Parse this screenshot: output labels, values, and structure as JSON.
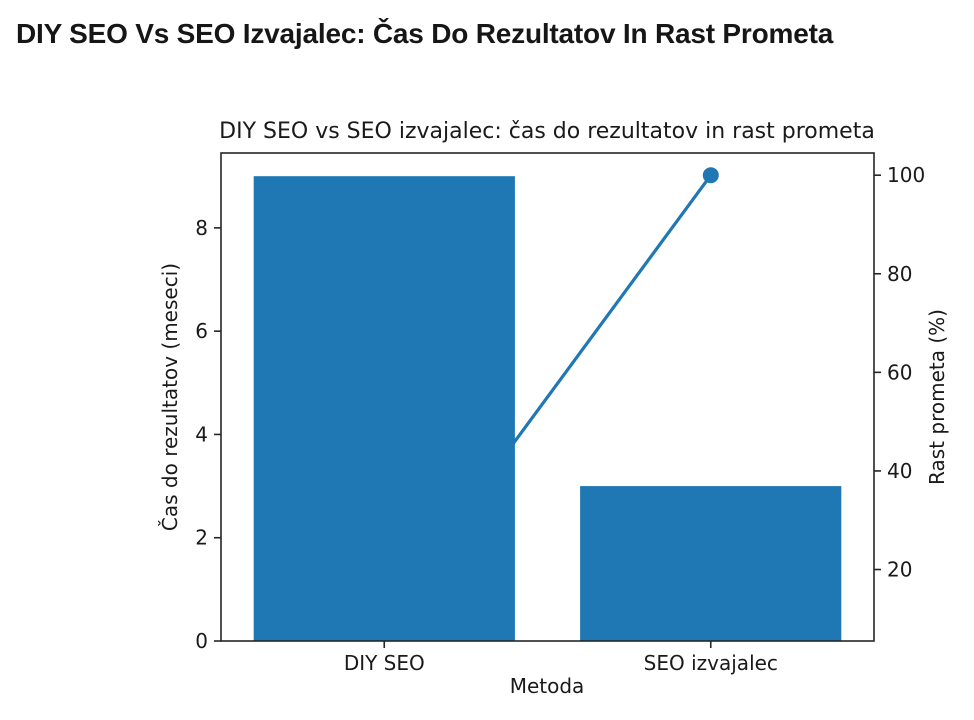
{
  "page": {
    "heading": "DIY SEO Vs SEO Izvajalec: Čas Do Rezultatov In Rast Prometa"
  },
  "chart_data": {
    "type": "bar",
    "title": "DIY SEO vs SEO izvajalec: čas do rezultatov in rast prometa",
    "categories": [
      "DIY SEO",
      "SEO izvajalec"
    ],
    "xlabel": "Metoda",
    "grid": false,
    "legend": "none",
    "bar_width_fraction": 0.8,
    "series": [
      {
        "name": "Čas do rezultatov (meseci)",
        "kind": "bar",
        "axis": "left",
        "values": [
          9,
          3
        ],
        "color": "#1f77b4"
      },
      {
        "name": "Rast prometa (%)",
        "kind": "line",
        "axis": "right",
        "values": [
          10,
          100
        ],
        "color": "#1f77b4",
        "marker": "circle"
      }
    ],
    "left_axis": {
      "label": "Čas do rezultatov (meseci)",
      "ticks": [
        0,
        2,
        4,
        6,
        8
      ],
      "range": [
        0,
        9.45
      ]
    },
    "right_axis": {
      "label": "Rast prometa (%)",
      "ticks": [
        20,
        40,
        60,
        80,
        100
      ],
      "range": [
        5.5,
        104.5
      ]
    },
    "colors": {
      "frame": "#262626",
      "text": "#1a1a1a"
    }
  }
}
